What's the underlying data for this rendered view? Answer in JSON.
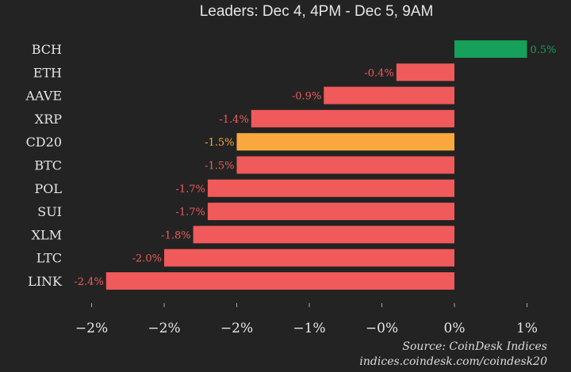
{
  "chart_data": {
    "type": "bar",
    "orientation": "horizontal",
    "subtitle": "Leaders: Dec 4, 4PM - Dec 5, 9AM",
    "categories": [
      "BCH",
      "ETH",
      "AAVE",
      "XRP",
      "CD20",
      "BTC",
      "POL",
      "SUI",
      "XLM",
      "LTC",
      "LINK"
    ],
    "values": [
      0.5,
      -0.4,
      -0.9,
      -1.4,
      -1.5,
      -1.5,
      -1.7,
      -1.7,
      -1.8,
      -2.0,
      -2.4
    ],
    "data_labels": [
      "0.5%",
      "-0.4%",
      "-0.9%",
      "-1.4%",
      "-1.5%",
      "-1.5%",
      "-1.7%",
      "-1.7%",
      "-1.8%",
      "-2.0%",
      "-2.4%"
    ],
    "highlight": "CD20",
    "xlim": [
      -2.5,
      0.5
    ],
    "x_ticks": [
      -2.5,
      -2.0,
      -1.5,
      -1.0,
      -0.5,
      0,
      0.5
    ],
    "x_tick_labels": [
      "−2%",
      "−2%",
      "−2%",
      "−1%",
      "−0%",
      "0%",
      "1%"
    ],
    "grid": false,
    "colors": {
      "positive": "#16a05a",
      "negative": "#f05a5a",
      "highlight": "#f9a83e",
      "background": "#232323",
      "text": "#e6e6e6"
    }
  },
  "source": {
    "line1": "Source: CoinDesk Indices",
    "line2": "indices.coindesk.com/coindesk20"
  }
}
